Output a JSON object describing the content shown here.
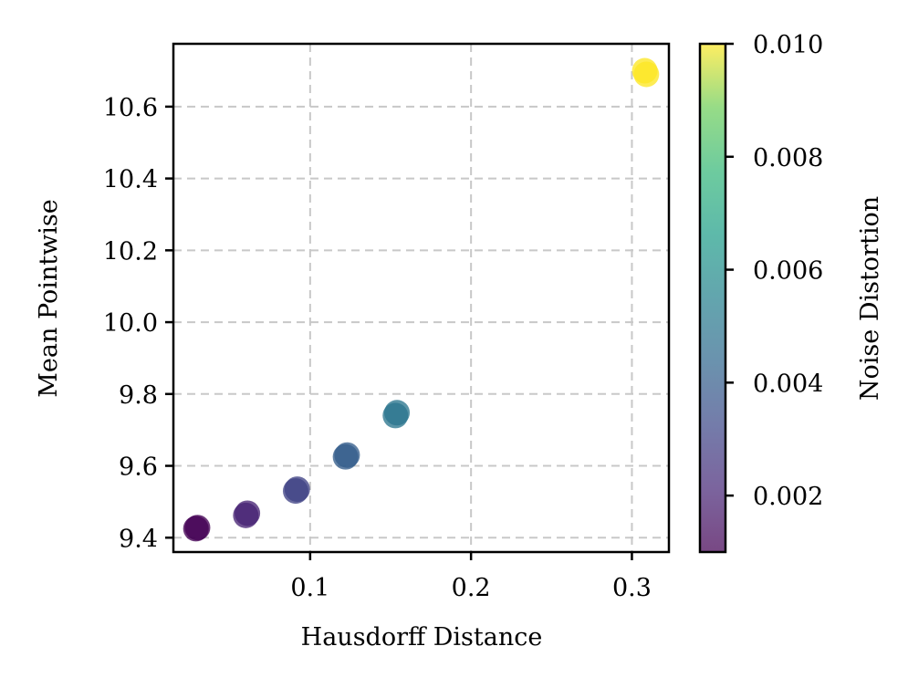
{
  "chart_data": {
    "type": "scatter",
    "xlabel": "Hausdorff Distance",
    "ylabel": "Mean Pointwise",
    "xlim": [
      0.015,
      0.323
    ],
    "ylim": [
      9.36,
      10.775
    ],
    "xticks": [
      0.1,
      0.2,
      0.3
    ],
    "xtick_labels": [
      "0.1",
      "0.2",
      "0.3"
    ],
    "yticks": [
      9.4,
      9.6,
      9.8,
      10.0,
      10.2,
      10.4,
      10.6
    ],
    "ytick_labels": [
      "9.4",
      "9.6",
      "9.8",
      "10.0",
      "10.2",
      "10.4",
      "10.6"
    ],
    "grid": true,
    "colorbar": {
      "label": "Noise Distortion",
      "colormap": "viridis",
      "range": [
        0.001,
        0.01
      ],
      "ticks": [
        0.002,
        0.004,
        0.006,
        0.008,
        0.01
      ],
      "tick_labels": [
        "0.002",
        "0.004",
        "0.006",
        "0.008",
        "0.010"
      ]
    },
    "points": [
      {
        "x": 0.029,
        "y": 9.425,
        "noise": 0.001
      },
      {
        "x": 0.03,
        "y": 9.428,
        "noise": 0.001
      },
      {
        "x": 0.06,
        "y": 9.462,
        "noise": 0.002
      },
      {
        "x": 0.061,
        "y": 9.468,
        "noise": 0.002
      },
      {
        "x": 0.091,
        "y": 9.53,
        "noise": 0.003
      },
      {
        "x": 0.092,
        "y": 9.535,
        "noise": 0.003
      },
      {
        "x": 0.122,
        "y": 9.625,
        "noise": 0.004
      },
      {
        "x": 0.123,
        "y": 9.63,
        "noise": 0.004
      },
      {
        "x": 0.153,
        "y": 9.74,
        "noise": 0.005
      },
      {
        "x": 0.154,
        "y": 9.748,
        "noise": 0.005
      },
      {
        "x": 0.308,
        "y": 10.7,
        "noise": 0.01
      },
      {
        "x": 0.309,
        "y": 10.69,
        "noise": 0.01
      }
    ]
  }
}
